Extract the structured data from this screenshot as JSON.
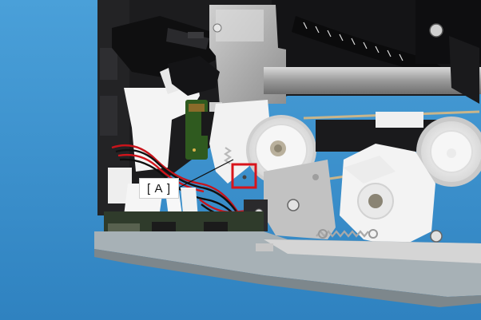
{
  "photo": {
    "subject": "printer-mechanism",
    "background_color": "#3f93cf",
    "highlight_color": "#d8141b"
  },
  "callout": {
    "label": "[ A ]"
  }
}
